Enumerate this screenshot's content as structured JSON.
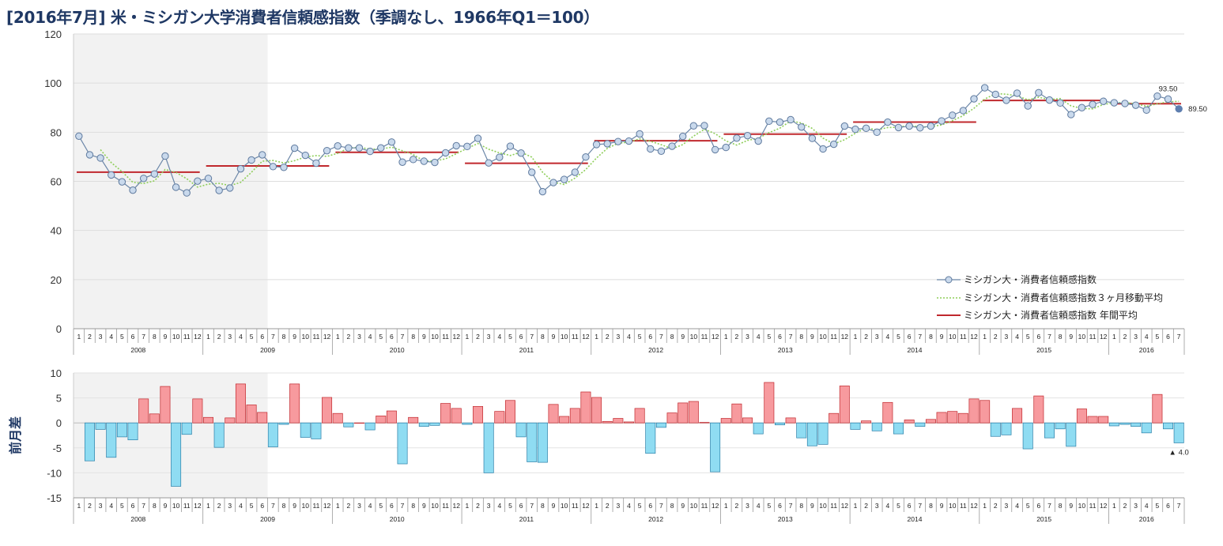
{
  "title": "[2016年7月] 米・ミシガン大学消費者信頼感指数（季調なし、1966年Q1＝100）",
  "chart_data": [
    {
      "type": "line",
      "years": [
        "2008",
        "2009",
        "2010",
        "2011",
        "2012",
        "2013",
        "2014",
        "2015",
        "2016"
      ],
      "month_labels": [
        "1",
        "2",
        "3",
        "4",
        "5",
        "6",
        "7",
        "8",
        "9",
        "10",
        "11",
        "12"
      ],
      "ylim": [
        0,
        120
      ],
      "yticks": [
        "0",
        "20",
        "40",
        "60",
        "80",
        "100",
        "120"
      ],
      "grid": true,
      "shaded_period": [
        "2008-01",
        "2009-06"
      ],
      "legend_position": "bottom-right",
      "series": [
        {
          "name": "ミシガン大・消費者信頼感指数",
          "color": "#6b86a8",
          "values": [
            78.4,
            70.8,
            69.5,
            62.6,
            59.8,
            56.4,
            61.2,
            63.0,
            70.3,
            57.6,
            55.3,
            60.1,
            61.2,
            56.3,
            57.3,
            65.1,
            68.7,
            70.8,
            66.0,
            65.7,
            73.5,
            70.6,
            67.4,
            72.5,
            74.4,
            73.6,
            73.6,
            72.2,
            73.6,
            76.0,
            67.8,
            68.9,
            68.2,
            67.7,
            71.6,
            74.5,
            74.2,
            77.5,
            67.5,
            69.8,
            74.3,
            71.5,
            63.7,
            55.8,
            59.5,
            60.8,
            63.7,
            69.9,
            75.0,
            75.3,
            76.2,
            76.4,
            79.3,
            73.2,
            72.3,
            74.3,
            78.3,
            82.6,
            82.7,
            72.9,
            73.8,
            77.6,
            78.6,
            76.4,
            84.5,
            84.1,
            85.1,
            82.1,
            77.5,
            73.2,
            75.1,
            82.5,
            81.2,
            81.6,
            80.0,
            84.1,
            81.9,
            82.5,
            81.8,
            82.5,
            84.6,
            86.9,
            88.8,
            93.6,
            98.1,
            95.4,
            93.0,
            95.9,
            90.7,
            96.1,
            93.1,
            91.9,
            87.2,
            90.0,
            91.3,
            92.6,
            92.0,
            91.7,
            91.0,
            89.0,
            94.7,
            93.5,
            89.5
          ],
          "last_labels": {
            "prev": "93.50",
            "last": "89.50"
          }
        },
        {
          "name": "ミシガン大・消費者信頼感指数３ヶ月移動平均",
          "color": "#8fce5a"
        },
        {
          "name": "ミシガン大・消費者信頼感指数 年間平均",
          "color": "#c0282d"
        }
      ]
    },
    {
      "type": "bar",
      "ylabel": "前月差",
      "ylim": [
        -15,
        10
      ],
      "yticks": [
        "-15",
        "-10",
        "-5",
        "0",
        "5",
        "10"
      ],
      "positive_color": "#f79a9e",
      "negative_color": "#8fdcf2",
      "last_label": "▲ 4.0"
    }
  ]
}
